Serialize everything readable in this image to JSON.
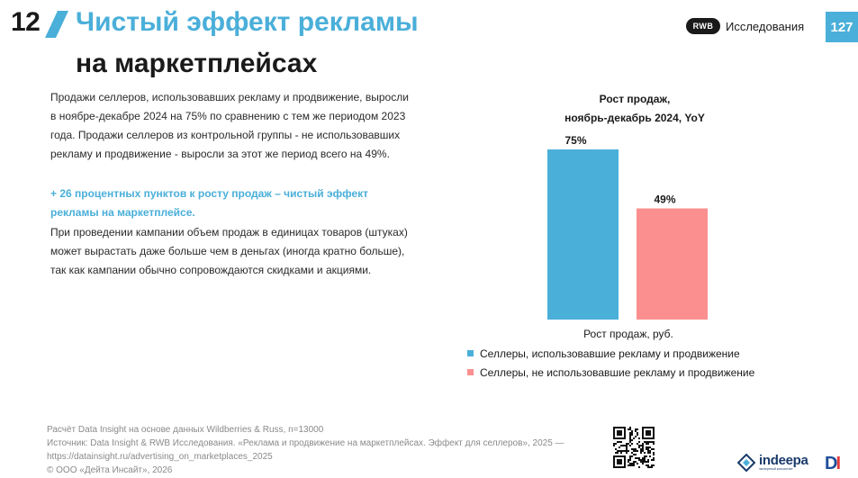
{
  "header": {
    "slide_number": "12",
    "title_line1": "Чистый эффект рекламы",
    "title_line2": "на маркетплейсах",
    "brand_logo_text": "RWB",
    "brand_text": "Исследования",
    "page_number": "127"
  },
  "body": {
    "paragraph1": "Продажи селлеров, использовавших рекламу и продвижение, выросли в ноябре-декабре 2024 на 75% по сравнению с тем же периодом 2023 года. Продажи селлеров из контрольной группы - не использовавших рекламу и продвижение - выросли за этот же период всего на 49%.",
    "highlight": "+ 26 процентных пунктов к росту продаж – чистый эффект рекламы на маркетплейсе.",
    "paragraph3": "При проведении кампании объем продаж в единицах товаров (штуках) может вырастать даже больше чем в деньгах (иногда кратно больше), так как кампании обычно сопровождаются скидками и акциями."
  },
  "chart_data": {
    "type": "bar",
    "title_line1": "Рост продаж,",
    "title_line2": "ноябрь-декабрь 2024, YoY",
    "categories": [
      "Рост продаж, руб."
    ],
    "series": [
      {
        "name": "Селлеры, использовавшие рекламу и продвижение",
        "values": [
          75
        ],
        "label": "75%",
        "color": "#4aafd9"
      },
      {
        "name": "Селлеры, не использовавшие рекламу и продвижение",
        "values": [
          49
        ],
        "label": "49%",
        "color": "#fb8f8f"
      }
    ],
    "unit": "%",
    "ylim": [
      0,
      75
    ],
    "grid": false,
    "legend_position": "bottom"
  },
  "footer": {
    "line1": "Расчёт Data Insight на основе данных Wildberries & Russ, n=13000",
    "line2": "Источник: Data Insight & RWB Исследования. «Реклама и продвижение на маркетплейсах. Эффект для селлеров», 2025 —",
    "line3": "https://datainsight.ru/advertising_on_marketplaces_2025",
    "line4": "© ООО «Дейта Инсайт», 2026"
  },
  "logos": {
    "indeepa": "indeepa",
    "indeepa_sub": "экспертный консалтинг",
    "di_d": "D",
    "di_i": "I"
  }
}
